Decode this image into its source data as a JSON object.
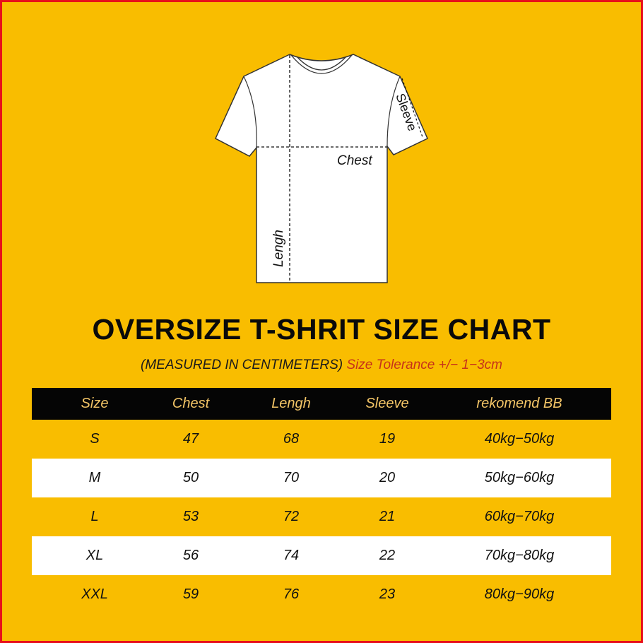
{
  "colors": {
    "background": "#f9bd00",
    "border": "#e8101a",
    "header_bg": "#050505",
    "header_text": "#f3c567",
    "tolerance": "#c7321a"
  },
  "diagram": {
    "labels": {
      "sleeve": "Sleeve",
      "chest": "Chest",
      "length": "Lengh"
    }
  },
  "title": "OVERSIZE T-SHRIT SIZE CHART",
  "subtitle": {
    "measured": "(MEASURED IN CENTIMETERS)",
    "tolerance": "Size Tolerance +/− 1−3cm"
  },
  "table": {
    "headers": [
      "Size",
      "Chest",
      "Lengh",
      "Sleeve",
      "rekomend BB"
    ],
    "rows": [
      [
        "S",
        "47",
        "68",
        "19",
        "40kg−50kg"
      ],
      [
        "M",
        "50",
        "70",
        "20",
        "50kg−60kg"
      ],
      [
        "L",
        "53",
        "72",
        "21",
        "60kg−70kg"
      ],
      [
        "XL",
        "56",
        "74",
        "22",
        "70kg−80kg"
      ],
      [
        "XXL",
        "59",
        "76",
        "23",
        "80kg−90kg"
      ]
    ]
  }
}
